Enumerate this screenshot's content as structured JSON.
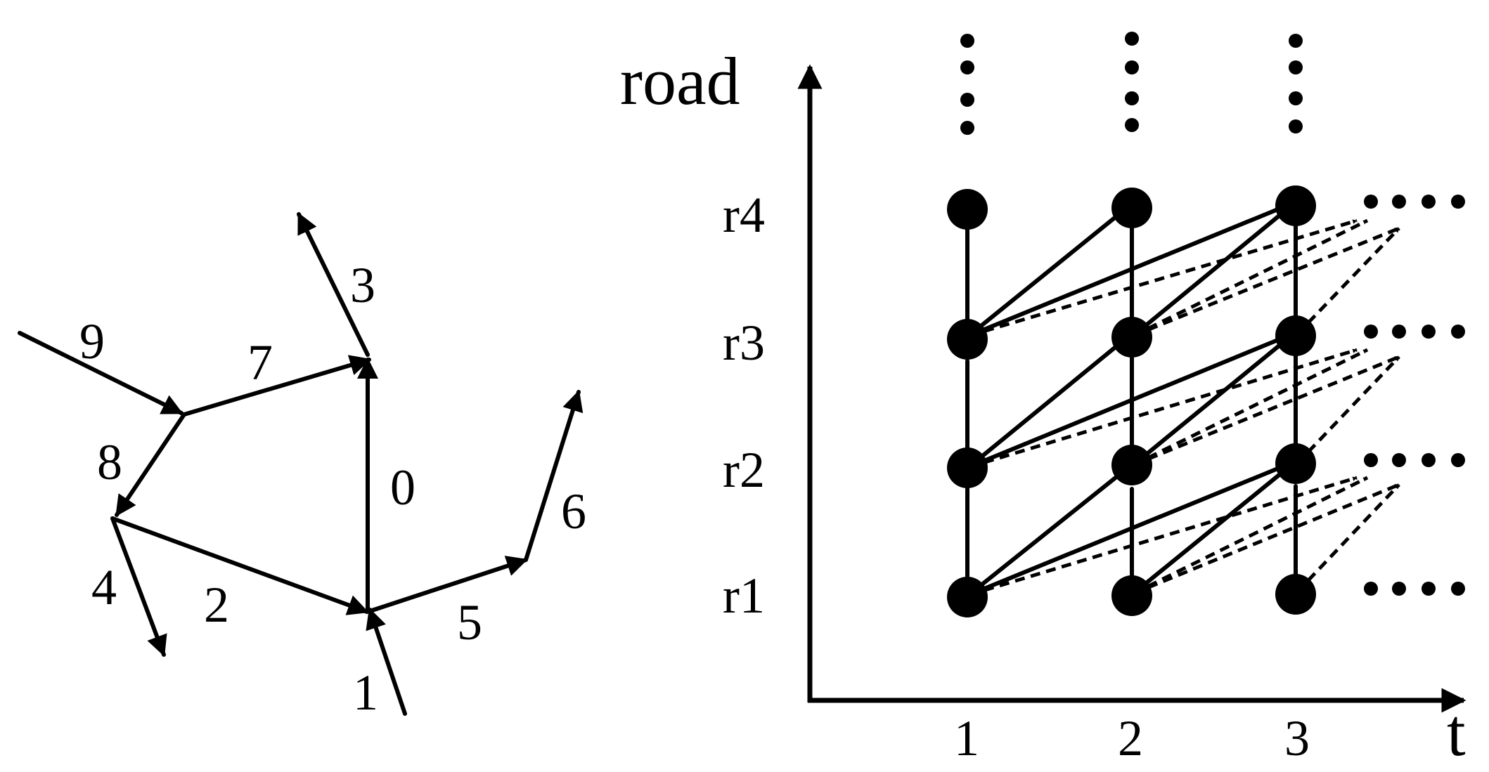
{
  "road_network": {
    "segment_labels": [
      "0",
      "1",
      "2",
      "3",
      "4",
      "5",
      "6",
      "7",
      "8",
      "9"
    ]
  },
  "time_graph": {
    "y_axis_label": "road",
    "x_axis_label": "t",
    "road_labels": [
      "r1",
      "r2",
      "r3",
      "r4"
    ],
    "time_labels": [
      "1",
      "2",
      "3"
    ]
  },
  "colors": {
    "ink": "#000000",
    "background": "#ffffff"
  }
}
